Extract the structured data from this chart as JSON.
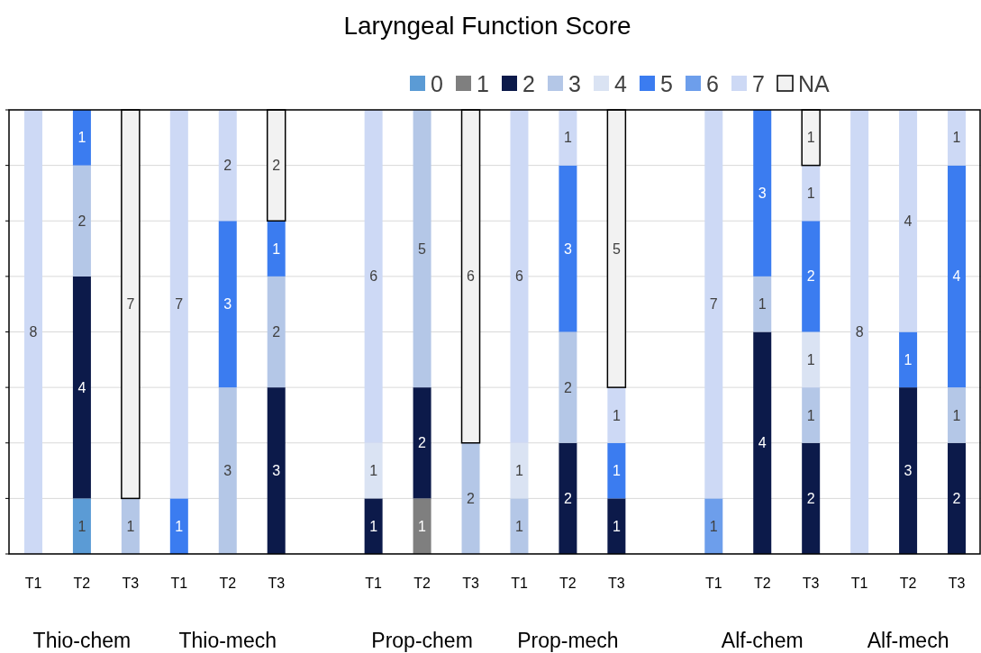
{
  "chart_data": {
    "type": "bar",
    "stacked": true,
    "title": "Laryngeal Function Score",
    "categories": [
      "T1",
      "T2",
      "T3",
      "T1",
      "T2",
      "T3",
      null,
      "T1",
      "T2",
      "T3",
      "T1",
      "T2",
      "T3",
      null,
      "T1",
      "T2",
      "T3",
      "T1",
      "T2",
      "T3"
    ],
    "series": [
      {
        "name": "0",
        "color": "#5b9bd5",
        "values": [
          null,
          1,
          null,
          null,
          null,
          null,
          null,
          null,
          null,
          null,
          null,
          null,
          null,
          null,
          null,
          null,
          null,
          null,
          null,
          null
        ]
      },
      {
        "name": "1",
        "color": "#7f7f7f",
        "values": [
          null,
          null,
          null,
          null,
          null,
          null,
          null,
          null,
          1,
          null,
          null,
          null,
          null,
          null,
          null,
          null,
          null,
          null,
          null,
          null
        ]
      },
      {
        "name": "2",
        "color": "#0c1a4a",
        "values": [
          null,
          4,
          null,
          null,
          null,
          3,
          null,
          1,
          2,
          null,
          null,
          2,
          1,
          null,
          null,
          4,
          2,
          null,
          3,
          2
        ]
      },
      {
        "name": "3",
        "color": "#b4c7e7",
        "values": [
          null,
          2,
          1,
          null,
          3,
          2,
          null,
          null,
          5,
          2,
          1,
          2,
          null,
          null,
          null,
          1,
          1,
          null,
          null,
          1
        ]
      },
      {
        "name": "4",
        "color": "#dae3f3",
        "values": [
          null,
          null,
          null,
          null,
          null,
          null,
          null,
          1,
          null,
          null,
          1,
          null,
          null,
          null,
          null,
          null,
          1,
          null,
          null,
          null
        ]
      },
      {
        "name": "5",
        "color": "#3b7cf0",
        "values": [
          null,
          1,
          null,
          1,
          3,
          1,
          null,
          null,
          null,
          null,
          null,
          3,
          1,
          null,
          null,
          3,
          2,
          null,
          1,
          4
        ]
      },
      {
        "name": "6",
        "color": "#6d9eeb",
        "values": [
          null,
          null,
          null,
          null,
          null,
          null,
          null,
          null,
          null,
          null,
          null,
          null,
          null,
          null,
          1,
          null,
          null,
          null,
          null,
          null
        ]
      },
      {
        "name": "7",
        "color": "#cdd9f5",
        "values": [
          8,
          null,
          null,
          7,
          2,
          null,
          null,
          6,
          null,
          null,
          6,
          1,
          1,
          null,
          7,
          null,
          1,
          8,
          4,
          1
        ]
      },
      {
        "name": "NA",
        "color": "#f2f2f2",
        "values": [
          null,
          null,
          7,
          null,
          null,
          2,
          null,
          null,
          null,
          6,
          null,
          null,
          5,
          null,
          null,
          null,
          1,
          null,
          null,
          null
        ]
      }
    ],
    "ylim": [
      0,
      8
    ],
    "yticks": [
      {
        "value": 0,
        "label": null
      },
      {
        "value": 1,
        "label": null
      },
      {
        "value": 2,
        "label": null
      },
      {
        "value": 3,
        "label": null
      },
      {
        "value": 4,
        "label": null
      },
      {
        "value": 5,
        "label": null
      },
      {
        "value": 6,
        "label": null
      },
      {
        "value": 7,
        "label": null
      },
      {
        "value": 8,
        "label": null
      }
    ],
    "tick_labels": "x",
    "grid": "y",
    "legend": "top",
    "data_labels": true,
    "annotations": [
      "Thio-chem",
      "Thio-mech",
      "Prop-chem",
      "Prop-mech",
      "Alf-chem",
      "Alf-mech"
    ]
  }
}
